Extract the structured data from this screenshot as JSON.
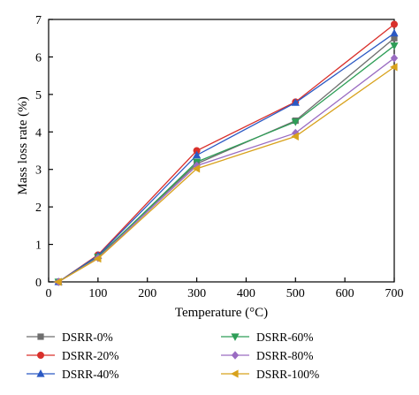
{
  "chart_data": {
    "type": "line",
    "xlabel": "Temperature (°C)",
    "ylabel": "Mass loss rate (%)",
    "xlim": [
      0,
      700
    ],
    "ylim": [
      0,
      7
    ],
    "xticks": [
      0,
      100,
      200,
      300,
      400,
      500,
      600,
      700
    ],
    "yticks": [
      0,
      1,
      2,
      3,
      4,
      5,
      6,
      7
    ],
    "grid": false,
    "legend_position": "bottom",
    "x": [
      20,
      100,
      300,
      500,
      700
    ],
    "series": [
      {
        "name": "DSRR-0%",
        "marker": "square",
        "color": "#6e6e6e",
        "values": [
          0,
          0.68,
          3.15,
          4.3,
          6.5
        ]
      },
      {
        "name": "DSRR-20%",
        "marker": "circle",
        "color": "#d9302b",
        "values": [
          0,
          0.72,
          3.5,
          4.8,
          6.87
        ]
      },
      {
        "name": "DSRR-40%",
        "marker": "triangle-up",
        "color": "#2b59c3",
        "values": [
          0,
          0.7,
          3.38,
          4.78,
          6.63
        ]
      },
      {
        "name": "DSRR-60%",
        "marker": "triangle-down",
        "color": "#2e9e57",
        "values": [
          0,
          0.66,
          3.2,
          4.27,
          6.3
        ]
      },
      {
        "name": "DSRR-80%",
        "marker": "diamond",
        "color": "#9a6cc2",
        "values": [
          0,
          0.64,
          3.1,
          3.97,
          5.97
        ]
      },
      {
        "name": "DSRR-100%",
        "marker": "triangle-left",
        "color": "#d8a21c",
        "values": [
          0,
          0.62,
          3.02,
          3.88,
          5.73
        ]
      }
    ]
  }
}
